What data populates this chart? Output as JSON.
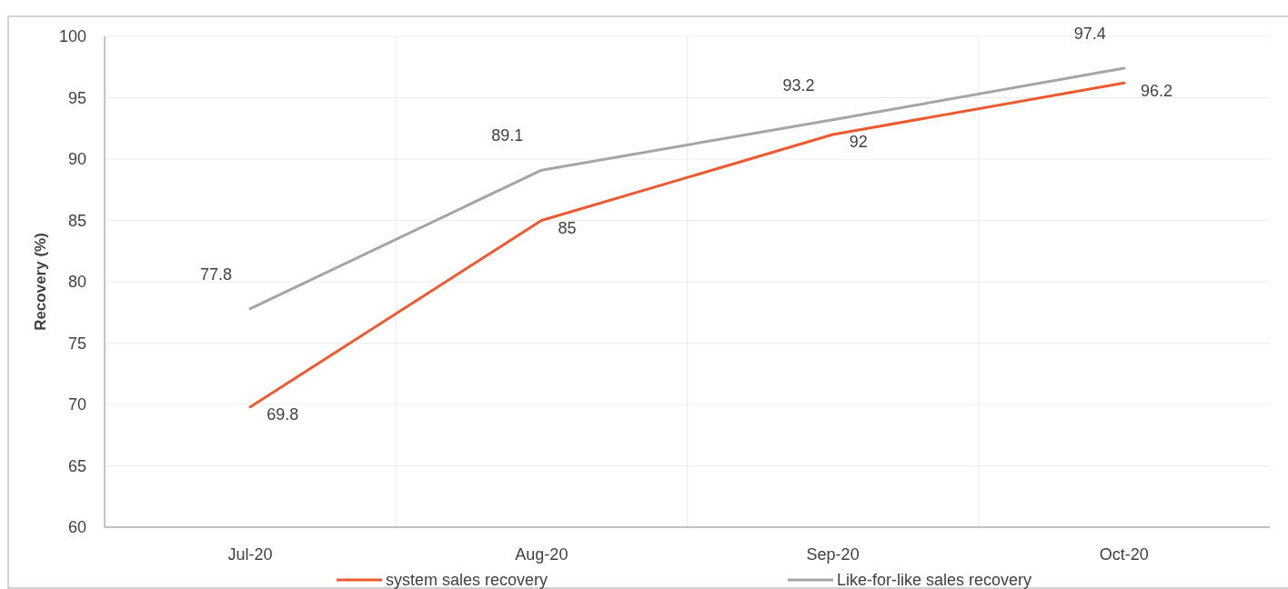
{
  "chart_data": {
    "type": "line",
    "ylabel": "Recovery (%)",
    "categories": [
      "Jul-20",
      "Aug-20",
      "Sep-20",
      "Oct-20"
    ],
    "series": [
      {
        "name": "system sales recovery",
        "color": "#ee5a2f",
        "values": [
          69.8,
          85,
          92,
          96.2
        ]
      },
      {
        "name": "Like-for-like sales recovery",
        "color": "#a5a5a5",
        "values": [
          77.8,
          89.1,
          93.2,
          97.4
        ]
      }
    ],
    "ylim": [
      60,
      100
    ],
    "yticks": [
      60,
      65,
      70,
      75,
      80,
      85,
      90,
      95,
      100
    ],
    "grid": true,
    "legend": "bottom",
    "data_labels": true,
    "marker": "none",
    "line_style": "solid"
  }
}
